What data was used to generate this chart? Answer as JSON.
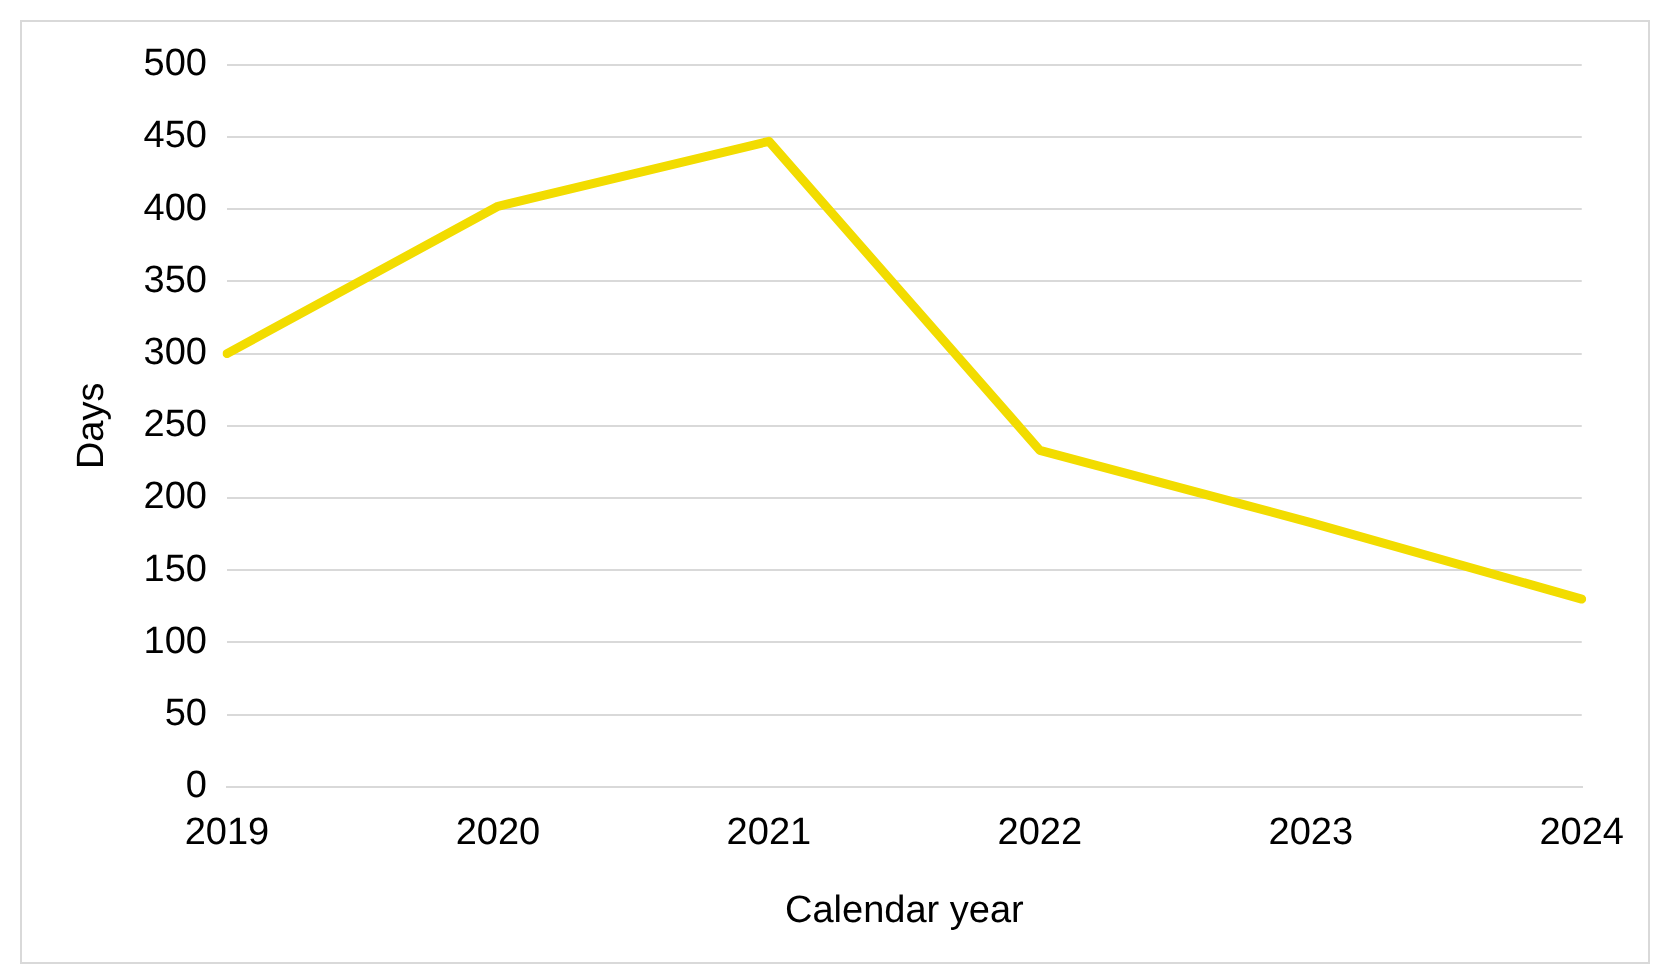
{
  "chart_data": {
    "type": "line",
    "xlabel": "Calendar year",
    "ylabel": "Days",
    "categories": [
      "2019",
      "2020",
      "2021",
      "2022",
      "2023",
      "2024"
    ],
    "series": [
      {
        "color": "#f2dc00",
        "values": [
          300,
          402,
          447,
          233,
          183,
          130
        ]
      }
    ],
    "ylim": [
      0,
      500
    ],
    "yticks": [
      0,
      50,
      100,
      150,
      200,
      250,
      300,
      350,
      400,
      450,
      500
    ],
    "grid": "y",
    "legend": false,
    "marker": "none"
  }
}
